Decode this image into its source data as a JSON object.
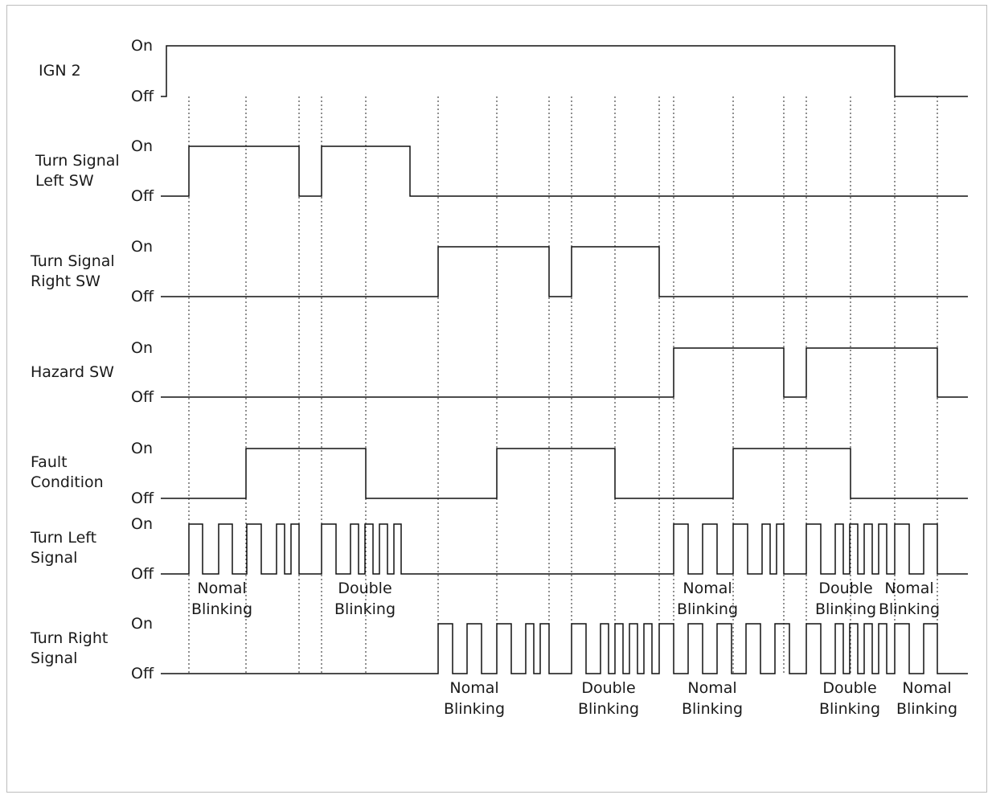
{
  "level_labels": {
    "on": "On",
    "off": "Off"
  },
  "rows": [
    {
      "label_lines": [
        "IGN 2"
      ]
    },
    {
      "label_lines": [
        "Turn Signal",
        "Left SW"
      ]
    },
    {
      "label_lines": [
        "Turn Signal",
        "Right SW"
      ]
    },
    {
      "label_lines": [
        "Hazard SW"
      ]
    },
    {
      "label_lines": [
        "Fault",
        "Condition"
      ]
    },
    {
      "label_lines": [
        "Turn Left",
        "Signal"
      ]
    },
    {
      "label_lines": [
        "Turn Right",
        "Signal"
      ]
    }
  ],
  "annotations": [
    {
      "row": 5,
      "lines": [
        "Nomal",
        "Blinking"
      ]
    },
    {
      "row": 5,
      "lines": [
        "Double",
        "Blinking"
      ]
    },
    {
      "row": 5,
      "lines": [
        "Nomal",
        "Blinking"
      ]
    },
    {
      "row": 5,
      "lines": [
        "Double",
        "Blinking"
      ]
    },
    {
      "row": 5,
      "lines": [
        "Nomal",
        "Blinking"
      ]
    },
    {
      "row": 6,
      "lines": [
        "Nomal",
        "Blinking"
      ]
    },
    {
      "row": 6,
      "lines": [
        "Double",
        "Blinking"
      ]
    },
    {
      "row": 6,
      "lines": [
        "Nomal",
        "Blinking"
      ]
    },
    {
      "row": 6,
      "lines": [
        "Double",
        "Blinking"
      ]
    },
    {
      "row": 6,
      "lines": [
        "Nomal",
        "Blinking"
      ]
    }
  ]
}
